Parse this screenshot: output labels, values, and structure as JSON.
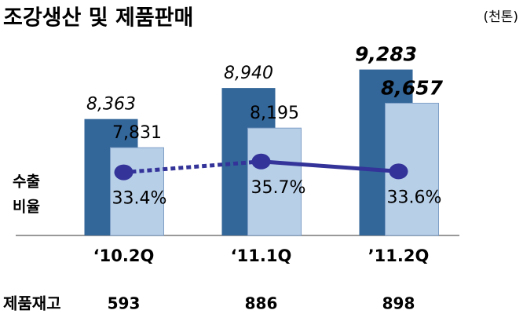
{
  "chart_data": {
    "type": "bar",
    "title": "조강생산 및 제품판매",
    "unit": "(천톤)",
    "categories": [
      "‘10.2Q",
      "‘11.1Q",
      "’11.2Q"
    ],
    "series": [
      {
        "color": "#336699",
        "values": [
          8363,
          8940,
          9283
        ],
        "value_labels": [
          "8,363",
          "8,940",
          "9,283"
        ]
      },
      {
        "color": "#b8cfe8",
        "values": [
          7831,
          8195,
          8657
        ],
        "value_labels": [
          "7,831",
          "8,195",
          "8,657"
        ]
      },
      {
        "type": "line",
        "axis": "y2",
        "color": "#333399",
        "values": [
          33.4,
          35.7,
          33.6
        ],
        "value_labels": [
          "33.4%",
          "35.7%",
          "33.6%"
        ],
        "segment_styles": [
          "dotted",
          "solid"
        ]
      }
    ],
    "y2label": [
      "수출",
      "비율"
    ],
    "ylim": [
      6200,
      9700
    ],
    "y2lim": [
      20,
      60
    ],
    "table_row": {
      "label": "제품재고",
      "values": [
        593,
        886,
        898
      ]
    }
  }
}
